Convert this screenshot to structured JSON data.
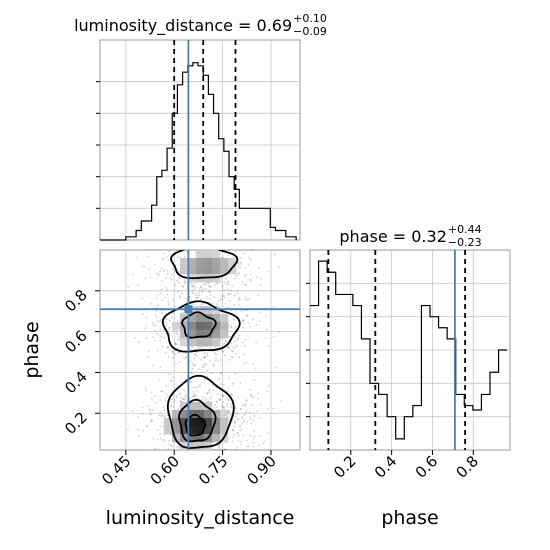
{
  "chart_data": [
    {
      "type": "histogram",
      "parameter": "luminosity_distance",
      "title_lhs": "luminosity_distance = 0.69",
      "title_plus": "+0.10",
      "title_minus": "−0.09",
      "xlim": [
        0.37,
        0.99
      ],
      "bin_edges": [
        0.37,
        0.386,
        0.402,
        0.418,
        0.434,
        0.45,
        0.466,
        0.482,
        0.498,
        0.514,
        0.53,
        0.546,
        0.562,
        0.578,
        0.594,
        0.61,
        0.626,
        0.642,
        0.658,
        0.674,
        0.69,
        0.706,
        0.722,
        0.738,
        0.754,
        0.77,
        0.786,
        0.802,
        0.818,
        0.834,
        0.85,
        0.866,
        0.882,
        0.898,
        0.914,
        0.93,
        0.946,
        0.962,
        0.978
      ],
      "counts": [
        0,
        0,
        0,
        0,
        0,
        1,
        1,
        3,
        6,
        6,
        11,
        20,
        22,
        29,
        40,
        49,
        53,
        55,
        56,
        55,
        52,
        46,
        40,
        32,
        28,
        20,
        16,
        10,
        10,
        10,
        10,
        10,
        10,
        4,
        3,
        3,
        1,
        1
      ],
      "quantile_lines": [
        0.6,
        0.69,
        0.79
      ],
      "truth": 0.644
    },
    {
      "type": "scatter",
      "subtype": "2d-density-contour",
      "x_parameter": "luminosity_distance",
      "y_parameter": "phase",
      "xlim": [
        0.37,
        0.99
      ],
      "ylim": [
        0.02,
        1.0
      ],
      "truth": [
        0.644,
        0.71
      ],
      "contour_regions": [
        {
          "level": 1,
          "center": [
            0.66,
            0.17
          ],
          "rx": 0.08,
          "ry": 0.17
        },
        {
          "level": 2,
          "center": [
            0.675,
            0.61
          ],
          "rx": 0.12,
          "ry": 0.12
        },
        {
          "level": 3,
          "center": [
            0.68,
            0.2
          ],
          "rx": 0.105,
          "ry": 0.17
        },
        {
          "level": 3,
          "center": [
            0.69,
            0.93
          ],
          "rx": 0.11,
          "ry": 0.09
        }
      ]
    },
    {
      "type": "histogram",
      "parameter": "phase",
      "title_lhs": "phase = 0.32",
      "title_plus": "+0.44",
      "title_minus": "−0.23",
      "xlim": [
        0.0,
        0.98
      ],
      "bin_edges": [
        0.0,
        0.042,
        0.084,
        0.126,
        0.168,
        0.21,
        0.252,
        0.294,
        0.336,
        0.378,
        0.42,
        0.462,
        0.504,
        0.546,
        0.588,
        0.63,
        0.672,
        0.714,
        0.756,
        0.798,
        0.84,
        0.882,
        0.924,
        0.966
      ],
      "counts": [
        65,
        85,
        80,
        70,
        70,
        65,
        50,
        30,
        25,
        15,
        5,
        15,
        20,
        65,
        60,
        55,
        50,
        25,
        20,
        18,
        25,
        35,
        45
      ],
      "quantile_lines": [
        0.09,
        0.32,
        0.76
      ],
      "truth": 0.71
    }
  ],
  "axes": {
    "corner_x_ticklabels": [
      "0.45",
      "0.60",
      "0.75",
      "0.90"
    ],
    "corner_x_ticks": [
      0.45,
      0.6,
      0.75,
      0.9
    ],
    "corner_y_ticklabels": [
      "0.2",
      "0.4",
      "0.6",
      "0.8"
    ],
    "corner_y_ticks": [
      0.2,
      0.4,
      0.6,
      0.8
    ],
    "phase_x_ticklabels": [
      "0.2",
      "0.4",
      "0.6",
      "0.8"
    ],
    "phase_x_ticks": [
      0.2,
      0.4,
      0.6,
      0.8
    ],
    "xlabel_left": "luminosity_distance",
    "xlabel_right": "phase",
    "ylabel": "phase"
  },
  "colors": {
    "truth": "#4a7fb0",
    "hist": "#000000",
    "grid": "#c8c8c8",
    "spine": "#999999"
  }
}
